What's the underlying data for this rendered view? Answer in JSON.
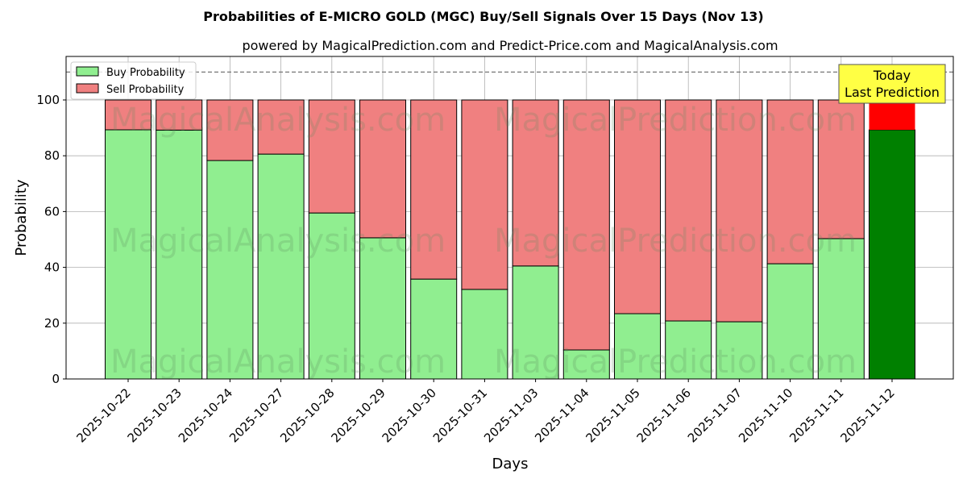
{
  "chart_data": {
    "type": "bar",
    "stacked": true,
    "title": "Probabilities of E-MICRO GOLD (MGC) Buy/Sell Signals Over 15 Days (Nov 13)",
    "subtitle": "powered by MagicalPrediction.com and Predict-Price.com and MagicalAnalysis.com",
    "xlabel": "Days",
    "ylabel": "Probability",
    "ylim": [
      0,
      115.6
    ],
    "yticks": [
      0,
      20,
      40,
      60,
      80,
      100
    ],
    "grid": true,
    "legend_position": "top-left",
    "reference_line": 110,
    "categories": [
      "2025-10-22",
      "2025-10-23",
      "2025-10-24",
      "2025-10-27",
      "2025-10-28",
      "2025-10-29",
      "2025-10-30",
      "2025-10-31",
      "2025-11-03",
      "2025-11-04",
      "2025-11-05",
      "2025-11-06",
      "2025-11-07",
      "2025-11-10",
      "2025-11-11",
      "2025-11-12"
    ],
    "series": [
      {
        "name": "Buy Probability",
        "color": "#90ee90",
        "highlight_color": "#008000",
        "values": [
          89.3,
          89.2,
          78.3,
          80.6,
          59.5,
          50.6,
          35.8,
          32.1,
          40.5,
          10.4,
          23.4,
          20.8,
          20.5,
          41.3,
          50.3,
          89.3
        ]
      },
      {
        "name": "Sell Probability",
        "color": "#f08080",
        "highlight_color": "#ff0000",
        "values": [
          10.7,
          10.8,
          21.7,
          19.4,
          40.5,
          49.4,
          64.2,
          67.9,
          59.5,
          89.6,
          76.6,
          79.2,
          79.5,
          58.7,
          49.7,
          10.7
        ]
      }
    ],
    "annotation": {
      "line1": "Today",
      "line2": "Last Prediction",
      "color": "#ffff44"
    },
    "watermarks": [
      "MagicalAnalysis.com",
      "MagicalPrediction.com"
    ]
  }
}
